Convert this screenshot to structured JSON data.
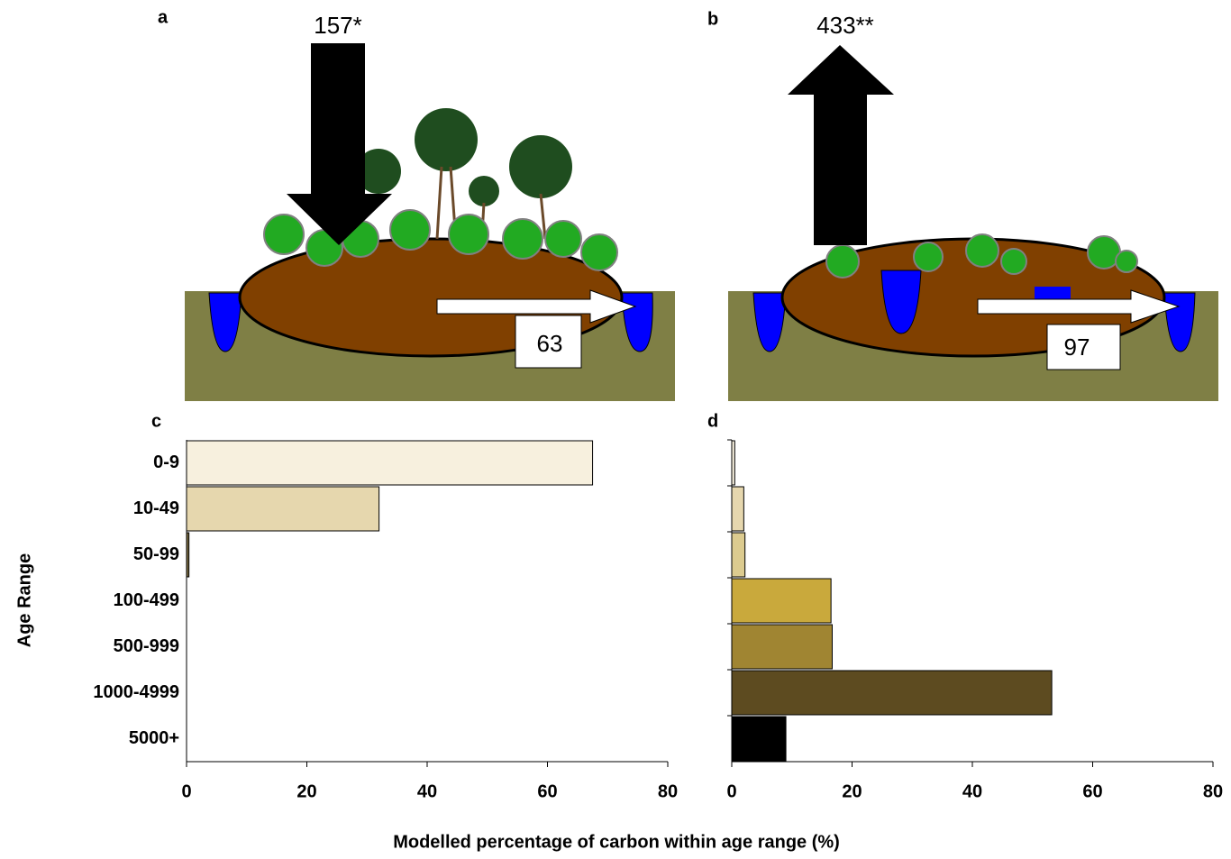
{
  "illustrations": [
    {
      "label": "a",
      "vertical_flux": "157*",
      "lateral_flux": "63"
    },
    {
      "label": "b",
      "vertical_flux": "433**",
      "lateral_flux": "97"
    }
  ],
  "chart_data": [
    {
      "type": "bar",
      "label": "c",
      "ylabel": "Age Range",
      "categories": [
        "0-9",
        "10-49",
        "50-99",
        "100-499",
        "500-999",
        "1000-4999",
        "5000+"
      ],
      "values": [
        67.5,
        32,
        0.4,
        0,
        0,
        0,
        0
      ],
      "colors": [
        "#f7f0de",
        "#e6d7ae",
        "#7a6a40",
        "#c9a93c",
        "#a08532",
        "#5d4b20",
        "#000000"
      ],
      "xlim": [
        0,
        80
      ],
      "xticks": [
        0,
        20,
        40,
        60,
        80
      ]
    },
    {
      "type": "bar",
      "label": "d",
      "categories": [
        "0-9",
        "10-49",
        "50-99",
        "100-499",
        "500-999",
        "1000-4999",
        "5000+"
      ],
      "values": [
        0.5,
        2,
        2.2,
        16.5,
        16.7,
        53.2,
        9
      ],
      "colors": [
        "#f7f0de",
        "#e6d7ae",
        "#dccb8f",
        "#c9a93c",
        "#a08532",
        "#5d4b20",
        "#000000"
      ],
      "xlim": [
        0,
        80
      ],
      "xticks": [
        0,
        20,
        40,
        60,
        80
      ]
    }
  ],
  "xlabel": "Modelled percentage of carbon within age range (%)"
}
